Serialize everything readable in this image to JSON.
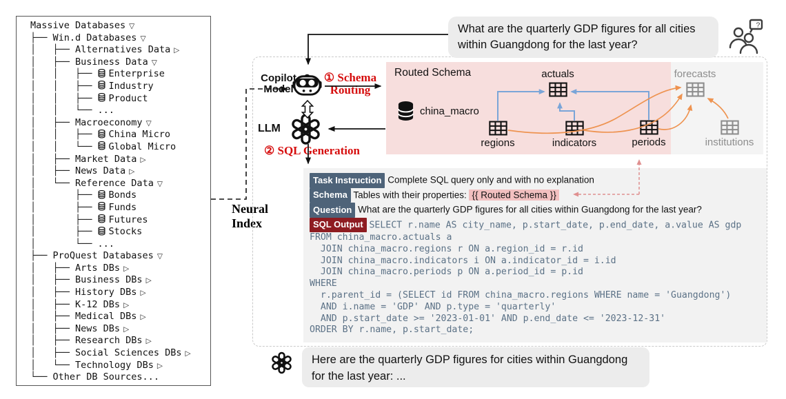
{
  "colors": {
    "accent-red": "#d60d0d",
    "tag-blue": "#4e6379",
    "tag-maroon": "#8e1c21",
    "pink-box": "#f7dedd",
    "pink-highlight": "#f2c0c0",
    "panel-gray": "#f4f4f4",
    "prompt-gray": "#f2f2f2",
    "bubble-gray": "#ececec",
    "arrow-blue": "#7aa5d8",
    "arrow-orange": "#ee9350",
    "arrow-red-dashed": "#e09090",
    "sql-ink": "#5b7186",
    "muted-gray": "#8d8d8d"
  },
  "tree": {
    "items": [
      {
        "pre": "",
        "db": false,
        "label": "Massive Databases",
        "arrow": "▽"
      },
      {
        "pre": "├── ",
        "db": false,
        "label": "Win.d Databases",
        "arrow": "▽"
      },
      {
        "pre": "│   ├── ",
        "db": false,
        "label": "Alternatives Data",
        "arrow": "▷"
      },
      {
        "pre": "│   ├── ",
        "db": false,
        "label": "Business Data",
        "arrow": "▽"
      },
      {
        "pre": "│   │   ├── ",
        "db": true,
        "label": "Enterprise",
        "arrow": ""
      },
      {
        "pre": "│   │   ├── ",
        "db": true,
        "label": "Industry",
        "arrow": ""
      },
      {
        "pre": "│   │   ├── ",
        "db": true,
        "label": "Product",
        "arrow": ""
      },
      {
        "pre": "│   │   └── ",
        "db": false,
        "label": "...",
        "arrow": ""
      },
      {
        "pre": "│   ├── ",
        "db": false,
        "label": "Macroeconomy",
        "arrow": "▽"
      },
      {
        "pre": "│   │   ├── ",
        "db": true,
        "label": "China Micro",
        "arrow": ""
      },
      {
        "pre": "│   │   └── ",
        "db": true,
        "label": "Global Micro",
        "arrow": ""
      },
      {
        "pre": "│   ├── ",
        "db": false,
        "label": "Market Data",
        "arrow": "▷"
      },
      {
        "pre": "│   ├── ",
        "db": false,
        "label": "News Data",
        "arrow": "▷"
      },
      {
        "pre": "│   └── ",
        "db": false,
        "label": "Reference Data",
        "arrow": "▽"
      },
      {
        "pre": "│       ├── ",
        "db": true,
        "label": "Bonds",
        "arrow": ""
      },
      {
        "pre": "│       ├── ",
        "db": true,
        "label": "Funds",
        "arrow": ""
      },
      {
        "pre": "│       ├── ",
        "db": true,
        "label": "Futures",
        "arrow": ""
      },
      {
        "pre": "│       ├── ",
        "db": true,
        "label": "Stocks",
        "arrow": ""
      },
      {
        "pre": "│       └── ",
        "db": false,
        "label": "...",
        "arrow": ""
      },
      {
        "pre": "├── ",
        "db": false,
        "label": "ProQuest Databases",
        "arrow": "▽"
      },
      {
        "pre": "│   ├── ",
        "db": false,
        "label": "Arts DBs",
        "arrow": "▷"
      },
      {
        "pre": "│   ├── ",
        "db": false,
        "label": "Business DBs",
        "arrow": "▷"
      },
      {
        "pre": "│   ├── ",
        "db": false,
        "label": "History DBs",
        "arrow": "▷"
      },
      {
        "pre": "│   ├── ",
        "db": false,
        "label": "K-12 DBs",
        "arrow": "▷"
      },
      {
        "pre": "│   ├── ",
        "db": false,
        "label": "Medical DBs",
        "arrow": "▷"
      },
      {
        "pre": "│   ├── ",
        "db": false,
        "label": "News DBs",
        "arrow": "▷"
      },
      {
        "pre": "│   ├── ",
        "db": false,
        "label": "Research DBs",
        "arrow": "▷"
      },
      {
        "pre": "│   ├── ",
        "db": false,
        "label": "Social Sciences DBs",
        "arrow": "▷"
      },
      {
        "pre": "│   └── ",
        "db": false,
        "label": "Technology DBs",
        "arrow": "▷"
      },
      {
        "pre": "└── ",
        "db": false,
        "label": "Other DB Sources...",
        "arrow": ""
      }
    ]
  },
  "neural_index": {
    "line1": "Neural",
    "line2": "Index"
  },
  "question_bubble": {
    "line1": "What are the quarterly GDP figures for all cities",
    "line2": "within Guangdong for the last year?"
  },
  "copilot": {
    "line1": "Copilot",
    "line2": "Model"
  },
  "llm": {
    "label": "LLM"
  },
  "steps": {
    "one_num": "①",
    "one_line1": "Schema",
    "one_line2": "Routing",
    "two_num": "②",
    "two_text": "SQL Generation"
  },
  "routed_schema": {
    "title": "Routed Schema",
    "database": "china_macro",
    "tables": [
      {
        "name": "actuals",
        "in_schema": true
      },
      {
        "name": "regions",
        "in_schema": true
      },
      {
        "name": "indicators",
        "in_schema": true
      },
      {
        "name": "periods",
        "in_schema": true
      },
      {
        "name": "forecasts",
        "in_schema": false
      },
      {
        "name": "institutions",
        "in_schema": false
      }
    ]
  },
  "prompt": {
    "task_label": "Task Instruction",
    "task_text": "Complete SQL query only and with no explanation",
    "schema_label": "Schema",
    "schema_text": "Tables with their properties:",
    "schema_slot": "{{ Routed Schema }}",
    "question_label": "Question",
    "question_text": "What are the quarterly GDP figures for all cities within Guangdong for the last year?",
    "sql_label": "SQL Output",
    "sql_first_line": "SELECT r.name AS city_name, p.start_date, p.end_date, a.value AS gdp",
    "sql_lines": [
      "FROM china_macro.actuals a",
      "  JOIN china_macro.regions r ON a.region_id = r.id",
      "  JOIN china_macro.indicators i ON a.indicator_id = i.id",
      "  JOIN china_macro.periods p ON a.period_id = p.id",
      "WHERE",
      "  r.parent_id = (SELECT id FROM china_macro.regions WHERE name = 'Guangdong')",
      "  AND i.name = 'GDP' AND p.type = 'quarterly'",
      "  AND p.start_date >= '2023-01-01' AND p.end_date <= '2023-12-31'",
      "ORDER BY r.name, p.start_date;"
    ]
  },
  "answer_bubble": {
    "line1": "Here are the quarterly GDP figures for cities within Guangdong",
    "line2": "for the last year: ..."
  }
}
